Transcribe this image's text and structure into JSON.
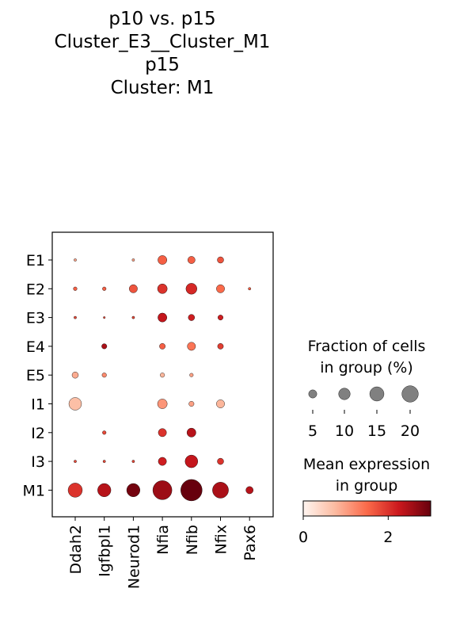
{
  "titles": {
    "line1": "p10 vs. p15",
    "line2": "Cluster_E3__Cluster_M1",
    "line3": "",
    "line4": "p15",
    "line5": "Cluster: M1"
  },
  "chart_data": {
    "type": "dotplot",
    "title": "p10 vs. p15 Cluster_E3__Cluster_M1 p15 Cluster: M1",
    "genes": [
      "Ddah2",
      "Igfbpl1",
      "Neurod1",
      "Nfia",
      "Nfib",
      "Nfix",
      "Pax6"
    ],
    "groups": [
      "E1",
      "E2",
      "E3",
      "E4",
      "E5",
      "I1",
      "I2",
      "I3",
      "M1"
    ],
    "fraction_pct": [
      [
        0.5,
        0,
        0.5,
        6,
        4,
        3,
        0
      ],
      [
        1,
        1,
        5,
        7,
        9,
        5,
        0.5
      ],
      [
        0.5,
        0.3,
        0.5,
        6,
        3,
        2,
        0
      ],
      [
        0,
        2,
        0,
        2.5,
        5,
        2.5,
        0
      ],
      [
        3,
        1.5,
        0,
        1.5,
        1,
        0,
        0
      ],
      [
        12,
        0,
        0,
        7,
        2,
        5,
        0
      ],
      [
        0,
        1,
        0,
        5,
        6,
        0,
        0
      ],
      [
        0.5,
        0.5,
        0.5,
        5,
        12,
        3,
        0
      ],
      [
        15,
        13,
        13,
        27,
        34,
        19,
        4
      ]
    ],
    "mean_expr": [
      [
        1.0,
        0,
        1.0,
        1.6,
        1.6,
        1.7,
        0
      ],
      [
        1.6,
        1.6,
        1.7,
        2.0,
        2.1,
        1.5,
        1.6
      ],
      [
        1.8,
        1.8,
        1.8,
        2.3,
        2.2,
        2.2,
        0
      ],
      [
        0,
        2.5,
        0,
        1.6,
        1.4,
        1.9,
        0
      ],
      [
        0.9,
        1.2,
        0,
        0.8,
        1.0,
        0,
        0
      ],
      [
        0.7,
        0,
        0,
        1.1,
        1.0,
        0.8,
        0
      ],
      [
        0,
        1.8,
        0,
        2.0,
        2.4,
        0,
        0
      ],
      [
        1.8,
        1.8,
        1.8,
        2.2,
        2.3,
        2.0,
        0
      ],
      [
        2.0,
        2.4,
        2.9,
        2.6,
        3.0,
        2.5,
        2.4
      ]
    ],
    "size_legend": {
      "title_line1": "Fraction of cells",
      "title_line2": "in group (%)",
      "values": [
        5,
        10,
        15,
        20
      ],
      "labels": [
        "5",
        "10",
        "15",
        "20"
      ]
    },
    "color_legend": {
      "title_line1": "Mean expression",
      "title_line2": "in group",
      "range": [
        0,
        3
      ],
      "ticks": [
        0,
        2
      ],
      "tick_labels": [
        "0",
        "2"
      ],
      "colormap": "Reds"
    },
    "colors": {
      "low": "#fff5f0",
      "mid1": "#fcbba1",
      "mid2": "#fb6a4a",
      "mid3": "#cb181d",
      "high": "#67000d"
    }
  }
}
